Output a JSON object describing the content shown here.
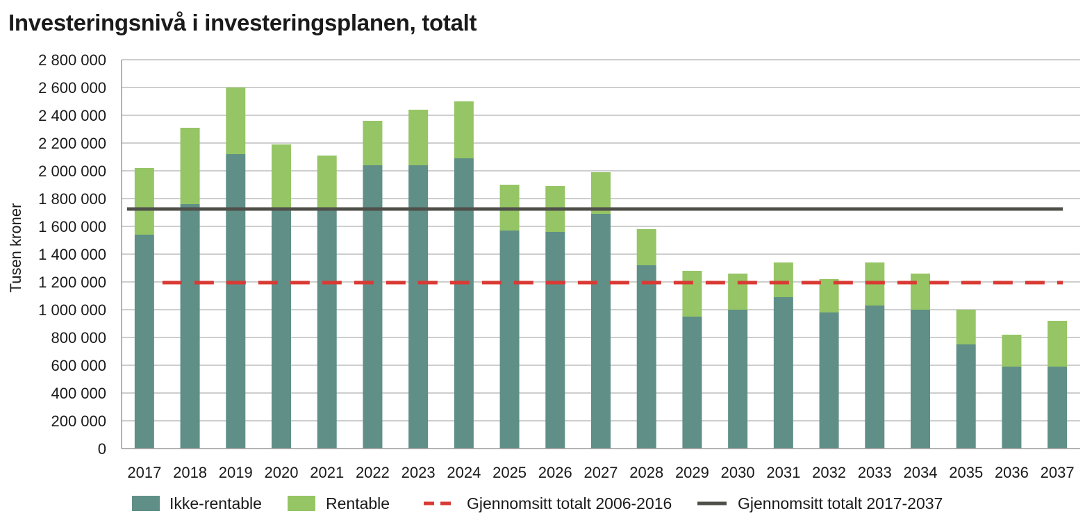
{
  "chart_data": {
    "type": "bar",
    "stacked": true,
    "title": "Investeringsnivå i investeringsplanen, totalt",
    "xlabel": "",
    "ylabel": "Tusen kroner",
    "ylim": [
      0,
      2800000
    ],
    "yticks": [
      0,
      200000,
      400000,
      600000,
      800000,
      1000000,
      1200000,
      1400000,
      1600000,
      1800000,
      2000000,
      2200000,
      2400000,
      2600000,
      2800000
    ],
    "ytick_labels": [
      "0",
      "200 000",
      "400 000",
      "600 000",
      "800 000",
      "1 000 000",
      "1 200 000",
      "1 400 000",
      "1 600 000",
      "1 800 000",
      "2 000 000",
      "2 200 000",
      "2 400 000",
      "2 600 000",
      "2 800 000"
    ],
    "grid": true,
    "legend_position": "bottom",
    "categories": [
      "2017",
      "2018",
      "2019",
      "2020",
      "2021",
      "2022",
      "2023",
      "2024",
      "2025",
      "2026",
      "2027",
      "2028",
      "2029",
      "2030",
      "2031",
      "2032",
      "2033",
      "2034",
      "2035",
      "2036",
      "2037"
    ],
    "series": [
      {
        "name": "Ikke-rentable",
        "color": "#5f8f87",
        "values": [
          1540000,
          1760000,
          2120000,
          1720000,
          1720000,
          2040000,
          2040000,
          2090000,
          1570000,
          1560000,
          1690000,
          1320000,
          950000,
          1000000,
          1090000,
          980000,
          1030000,
          1000000,
          750000,
          590000,
          590000
        ]
      },
      {
        "name": "Rentable",
        "color": "#95c564",
        "values": [
          480000,
          550000,
          480000,
          470000,
          390000,
          320000,
          400000,
          410000,
          330000,
          330000,
          300000,
          260000,
          330000,
          260000,
          250000,
          240000,
          310000,
          260000,
          250000,
          230000,
          330000
        ]
      }
    ],
    "reference_lines": [
      {
        "name": "Gjennomsitt totalt 2006-2016",
        "value": 1195000,
        "color": "#d93a34",
        "style": "dashed"
      },
      {
        "name": "Gjennomsitt totalt 2017-2037",
        "value": 1725000,
        "color": "#4f4f4a",
        "style": "solid"
      }
    ]
  }
}
